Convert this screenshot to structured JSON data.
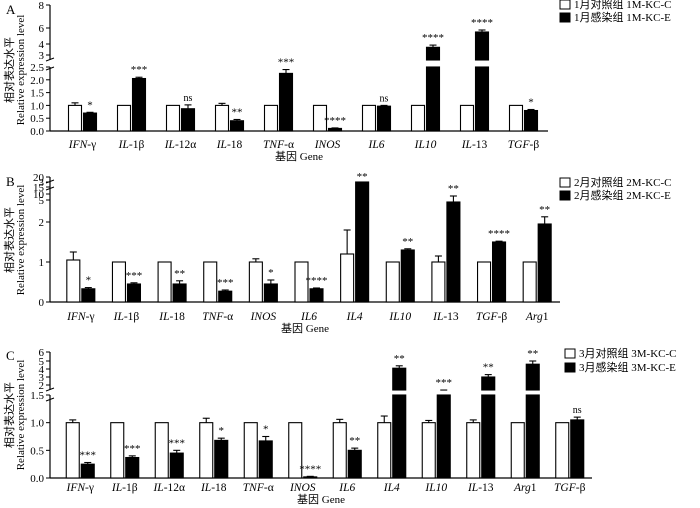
{
  "chart_data": [
    {
      "type": "bar",
      "panel_label": "A",
      "categories": [
        "IFN-γ",
        "IL-1β",
        "IL-12α",
        "IL-18",
        "TNF-α",
        "INOS",
        "IL6",
        "IL10",
        "IL-13",
        "TGF-β"
      ],
      "category_parts": [
        [
          "IFN",
          "-γ"
        ],
        [
          "IL",
          "-1β"
        ],
        [
          "IL",
          "-12α"
        ],
        [
          "IL",
          "-18"
        ],
        [
          "TNF",
          "-α"
        ],
        [
          "INOS",
          ""
        ],
        [
          "IL6",
          ""
        ],
        [
          "IL10",
          ""
        ],
        [
          "IL",
          "-13"
        ],
        [
          "TGF",
          "-β"
        ]
      ],
      "series": [
        {
          "name": "1月对照组  1M-KC-C",
          "fill": "#ffffff",
          "values": [
            1.0,
            1.0,
            1.0,
            1.0,
            1.0,
            1.0,
            1.0,
            1.0,
            1.0,
            1.0
          ],
          "errors": [
            0.1,
            0,
            0,
            0.08,
            0,
            0,
            0,
            0,
            0,
            0
          ]
        },
        {
          "name": "1月感染组  1M-KC-E",
          "fill": "#000000",
          "values": [
            0.7,
            2.05,
            0.87,
            0.4,
            2.25,
            0.1,
            0.97,
            3.7,
            5.5,
            0.8
          ],
          "errors": [
            0.03,
            0.05,
            0.15,
            0.05,
            0.15,
            0.02,
            0.03,
            0.2,
            0.25,
            0.04
          ]
        }
      ],
      "significance": [
        "*",
        "***",
        "ns",
        "**",
        "***",
        "****",
        "ns",
        "****",
        "****",
        "*"
      ],
      "ylabel_cn": "相对表达水平",
      "ylabel": "Relative expression level",
      "xlabel": "基因  Gene",
      "y_ticks_lower": [
        "0.0",
        "0.5",
        "1.0",
        "1.5",
        "2.0",
        "2.5"
      ],
      "y_ticks_upper": [
        "3",
        "4",
        "6",
        "8"
      ],
      "ylim_lower": [
        0,
        2.5
      ],
      "ylim_upper": [
        2.5,
        8
      ]
    },
    {
      "type": "bar",
      "panel_label": "B",
      "categories": [
        "IFN-γ",
        "IL-1β",
        "IL-18",
        "TNF-α",
        "INOS",
        "IL6",
        "IL4",
        "IL10",
        "IL-13",
        "TGF-β",
        "Arg1"
      ],
      "category_parts": [
        [
          "IFN",
          "-γ"
        ],
        [
          "IL",
          "-1β"
        ],
        [
          "IL",
          "-18"
        ],
        [
          "TNF",
          "-α"
        ],
        [
          "INOS",
          ""
        ],
        [
          "IL6",
          ""
        ],
        [
          "IL4",
          ""
        ],
        [
          "IL10",
          ""
        ],
        [
          "IL",
          "-13"
        ],
        [
          "TGF",
          "-β"
        ],
        [
          "Arg",
          "1"
        ]
      ],
      "series": [
        {
          "name": "2月对照组  2M-KC-C",
          "fill": "#ffffff",
          "values": [
            1.05,
            1.0,
            1.0,
            1.0,
            1.0,
            1.0,
            1.2,
            1.0,
            1.0,
            1.0,
            1.0
          ],
          "errors": [
            0.2,
            0,
            0,
            0,
            0.08,
            0,
            0.6,
            0,
            0.15,
            0,
            0
          ]
        },
        {
          "name": "2月感染组  2M-KC-E",
          "fill": "#000000",
          "values": [
            0.33,
            0.45,
            0.45,
            0.27,
            0.45,
            0.33,
            14,
            1.3,
            2.5,
            1.5,
            1.95
          ],
          "errors": [
            0.03,
            0.03,
            0.08,
            0.03,
            0.1,
            0.02,
            2.5,
            0.03,
            0.15,
            0.02,
            0.18
          ]
        }
      ],
      "significance": [
        "*",
        "***",
        "**",
        "***",
        "*",
        "****",
        "**",
        "**",
        "**",
        "****",
        "**"
      ],
      "ylabel_cn": "相对表达水平",
      "ylabel": "Relative expression level",
      "xlabel": "基因  Gene",
      "y_ticks_lower": [
        "0",
        "1",
        "2",
        "3"
      ],
      "y_ticks_upper": [
        "5",
        "10",
        "15",
        "20"
      ],
      "ylim_lower": [
        0,
        3
      ],
      "ylim_upper": [
        3,
        20
      ]
    },
    {
      "type": "bar",
      "panel_label": "C",
      "categories": [
        "IFN-γ",
        "IL-1β",
        "IL-12α",
        "IL-18",
        "TNF-α",
        "INOS",
        "IL6",
        "IL4",
        "IL10",
        "IL-13",
        "Arg1",
        "TGF-β"
      ],
      "category_parts": [
        [
          "IFN",
          "-γ"
        ],
        [
          "IL",
          "-1β"
        ],
        [
          "IL",
          "-12α"
        ],
        [
          "IL",
          "-18"
        ],
        [
          "TNF",
          "-α"
        ],
        [
          "INOS",
          ""
        ],
        [
          "IL6",
          ""
        ],
        [
          "IL4",
          ""
        ],
        [
          "IL10",
          ""
        ],
        [
          "IL",
          "-13"
        ],
        [
          "Arg",
          "1"
        ],
        [
          "TGF",
          "-β"
        ]
      ],
      "series": [
        {
          "name": "3月对照组  3M-KC-C",
          "fill": "#ffffff",
          "values": [
            1.0,
            1.0,
            1.0,
            1.0,
            1.0,
            1.0,
            1.0,
            1.0,
            1.0,
            1.0,
            1.0,
            1.0
          ],
          "errors": [
            0.05,
            0,
            0,
            0.08,
            0,
            0,
            0.06,
            0.12,
            0.04,
            0.05,
            0,
            0
          ]
        },
        {
          "name": "3月感染组  3M-KC-E",
          "fill": "#000000",
          "values": [
            0.25,
            0.37,
            0.45,
            0.68,
            0.67,
            0.02,
            0.5,
            4.1,
            1.62,
            3.0,
            4.6,
            1.05
          ],
          "errors": [
            0.03,
            0.03,
            0.05,
            0.04,
            0.08,
            0.01,
            0.04,
            0.3,
            0.02,
            0.3,
            0.4,
            0.05
          ]
        }
      ],
      "significance": [
        "***",
        "***",
        "***",
        "*",
        "*",
        "****",
        "**",
        "**",
        "***",
        "**",
        "**",
        "ns"
      ],
      "ylabel_cn": "相对表达水平",
      "ylabel": "Relative expression level",
      "xlabel": "基因  Gene",
      "y_ticks_lower": [
        "0.0",
        "0.5",
        "1.0",
        "1.5"
      ],
      "y_ticks_upper": [
        "2",
        "3",
        "4",
        "5",
        "6"
      ],
      "ylim_lower": [
        0,
        1.5
      ],
      "ylim_upper": [
        1.5,
        6
      ]
    }
  ]
}
